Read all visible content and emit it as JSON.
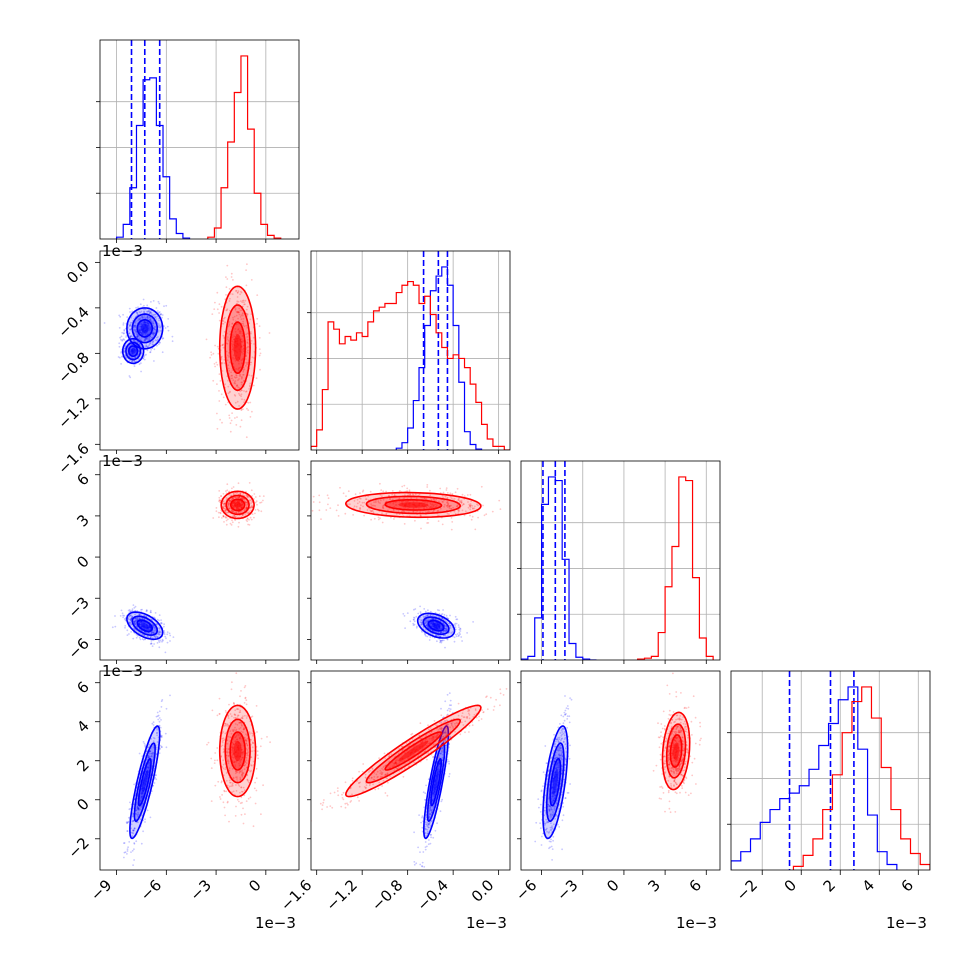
{
  "chart_data": {
    "type": "corner",
    "colors": {
      "blue": "#0000ff",
      "red": "#ff0000"
    },
    "grid": true,
    "parameters": [
      {
        "range": [
          -10.0,
          2.0
        ],
        "ticks": [
          -9,
          -6,
          -3,
          0
        ],
        "tick_labels": [
          "−9",
          "−6",
          "−3",
          "0"
        ],
        "offset_label": "1e−3"
      },
      {
        "range": [
          -1.65,
          0.1
        ],
        "ticks": [
          -1.6,
          -1.2,
          -0.8,
          -0.4,
          0.0
        ],
        "tick_labels": [
          "−1.6",
          "−1.2",
          "−0.8",
          "−0.4",
          "0.0"
        ],
        "offset_label": "1e−3"
      },
      {
        "range": [
          -7.5,
          7.0
        ],
        "ticks": [
          -6,
          -3,
          0,
          3,
          6
        ],
        "tick_labels": [
          "−6",
          "−3",
          "0",
          "3",
          "6"
        ],
        "offset_label": "1e−3"
      },
      {
        "range": [
          -3.6,
          6.6
        ],
        "ticks": [
          -2,
          0,
          2,
          4,
          6
        ],
        "tick_labels": [
          "−2",
          "0",
          "2",
          "4",
          "6"
        ],
        "offset_label": "1e−3"
      }
    ],
    "series": [
      {
        "color": "blue",
        "quantiles": [
          [
            -8.1,
            -7.3,
            -6.4
          ],
          [
            -0.66,
            -0.53,
            -0.45
          ],
          [
            -5.9,
            -5.0,
            -4.3
          ],
          [
            -0.6,
            1.5,
            2.7
          ]
        ],
        "histograms": [
          {
            "edges": [
              -9.0,
              -8.6,
              -8.2,
              -7.8,
              -7.4,
              -7.0,
              -6.6,
              -6.2,
              -5.8,
              -5.4,
              -5.0,
              -4.6
            ],
            "values": [
              0.01,
              0.08,
              0.28,
              0.62,
              0.87,
              0.88,
              0.62,
              0.34,
              0.11,
              0.03,
              0.005
            ]
          },
          {
            "edges": [
              -0.9,
              -0.85,
              -0.8,
              -0.75,
              -0.7,
              -0.65,
              -0.6,
              -0.55,
              -0.5,
              -0.45,
              -0.4,
              -0.35,
              -0.3,
              -0.25,
              -0.2,
              -0.15
            ],
            "values": [
              0.01,
              0.04,
              0.12,
              0.27,
              0.45,
              0.68,
              0.87,
              0.95,
              1.0,
              0.9,
              0.68,
              0.37,
              0.1,
              0.03,
              0.005
            ]
          },
          {
            "edges": [
              -7.5,
              -7.0,
              -6.5,
              -6.0,
              -5.5,
              -5.0,
              -4.5,
              -4.0,
              -3.5,
              -3.0,
              -2.5,
              -2.0
            ],
            "values": [
              0.005,
              0.02,
              0.23,
              0.85,
              1.0,
              0.98,
              0.55,
              0.09,
              0.015,
              0.005,
              0.0
            ]
          },
          {
            "edges": [
              -3.6,
              -3.1,
              -2.6,
              -2.1,
              -1.6,
              -1.1,
              -0.6,
              -0.1,
              0.4,
              0.9,
              1.4,
              1.9,
              2.4,
              2.9,
              3.4,
              3.9,
              4.4,
              4.9
            ],
            "values": [
              0.05,
              0.1,
              0.17,
              0.26,
              0.33,
              0.39,
              0.42,
              0.46,
              0.55,
              0.68,
              0.8,
              0.93,
              1.0,
              0.66,
              0.3,
              0.1,
              0.03
            ]
          }
        ],
        "clusters": [
          {
            "pair": [
              0,
              1
            ],
            "mean": [
              -7.3,
              -0.58
            ],
            "sd": [
              0.6,
              0.1
            ],
            "corr": 0.0,
            "secondary": {
              "mean": [
                -8.0,
                -0.78
              ],
              "sd": [
                0.35,
                0.06
              ],
              "corr": 0.0
            }
          },
          {
            "pair": [
              0,
              2
            ],
            "mean": [
              -7.3,
              -5.0
            ],
            "sd": [
              0.6,
              0.55
            ],
            "corr": -0.5
          },
          {
            "pair": [
              1,
              2
            ],
            "mean": [
              -0.55,
              -5.0
            ],
            "sd": [
              0.09,
              0.5
            ],
            "corr": -0.4
          },
          {
            "pair": [
              0,
              3
            ],
            "mean": [
              -7.3,
              0.9
            ],
            "sd": [
              0.5,
              1.6
            ],
            "corr": 0.85
          },
          {
            "pair": [
              1,
              3
            ],
            "mean": [
              -0.55,
              0.9
            ],
            "sd": [
              0.06,
              1.6
            ],
            "corr": 0.85
          },
          {
            "pair": [
              2,
              3
            ],
            "mean": [
              -5.0,
              0.9
            ],
            "sd": [
              0.5,
              1.6
            ],
            "corr": 0.6
          }
        ]
      },
      {
        "color": "red",
        "histograms": [
          {
            "edges": [
              -3.5,
              -3.1,
              -2.7,
              -2.3,
              -1.9,
              -1.5,
              -1.1,
              -0.7,
              -0.3,
              0.1,
              0.5,
              0.9
            ],
            "values": [
              0.01,
              0.06,
              0.28,
              0.53,
              0.8,
              1.0,
              0.6,
              0.25,
              0.08,
              0.02,
              0.005
            ]
          },
          {
            "edges": [
              -1.65,
              -1.6,
              -1.55,
              -1.5,
              -1.45,
              -1.4,
              -1.35,
              -1.3,
              -1.25,
              -1.2,
              -1.15,
              -1.1,
              -1.05,
              -1.0,
              -0.95,
              -0.9,
              -0.85,
              -0.8,
              -0.75,
              -0.7,
              -0.65,
              -0.6,
              -0.55,
              -0.5,
              -0.45,
              -0.4,
              -0.35,
              -0.3,
              -0.25,
              -0.2,
              -0.15,
              -0.1,
              -0.05,
              0.0,
              0.05,
              0.1
            ],
            "values": [
              0.02,
              0.11,
              0.33,
              0.7,
              0.66,
              0.58,
              0.62,
              0.6,
              0.64,
              0.62,
              0.7,
              0.76,
              0.78,
              0.8,
              0.8,
              0.86,
              0.9,
              0.92,
              0.9,
              0.8,
              0.84,
              0.74,
              0.64,
              0.56,
              0.5,
              0.52,
              0.5,
              0.45,
              0.36,
              0.26,
              0.14,
              0.06,
              0.02,
              0.02,
              0.0
            ]
          },
          {
            "edges": [
              1.0,
              1.5,
              2.0,
              2.5,
              3.0,
              3.5,
              4.0,
              4.5,
              5.0,
              5.5,
              6.0,
              6.5
            ],
            "values": [
              0.005,
              0.01,
              0.02,
              0.15,
              0.4,
              0.62,
              1.0,
              0.98,
              0.45,
              0.12,
              0.02
            ]
          },
          {
            "edges": [
              -0.4,
              0.1,
              0.6,
              1.1,
              1.6,
              2.1,
              2.6,
              3.1,
              3.6,
              4.1,
              4.6,
              5.1,
              5.6,
              6.1,
              6.6
            ],
            "values": [
              0.02,
              0.08,
              0.17,
              0.33,
              0.52,
              0.75,
              0.92,
              1.0,
              0.83,
              0.56,
              0.33,
              0.17,
              0.09,
              0.03
            ]
          }
        ],
        "clusters": [
          {
            "pair": [
              0,
              1
            ],
            "mean": [
              -1.7,
              -0.75
            ],
            "sd": [
              0.6,
              0.3
            ],
            "corr": 0.0
          },
          {
            "pair": [
              0,
              2
            ],
            "mean": [
              -1.7,
              3.8
            ],
            "sd": [
              0.55,
              0.55
            ],
            "corr": 0.0
          },
          {
            "pair": [
              1,
              2
            ],
            "mean": [
              -0.75,
              3.8
            ],
            "sd": [
              0.33,
              0.5
            ],
            "corr": -0.1
          },
          {
            "pair": [
              0,
              3
            ],
            "mean": [
              -1.7,
              2.5
            ],
            "sd": [
              0.6,
              1.3
            ],
            "corr": 0.0
          },
          {
            "pair": [
              1,
              3
            ],
            "mean": [
              -0.75,
              2.5
            ],
            "sd": [
              0.33,
              1.3
            ],
            "corr": 0.95
          },
          {
            "pair": [
              2,
              3
            ],
            "mean": [
              3.8,
              2.5
            ],
            "sd": [
              0.55,
              1.1
            ],
            "corr": 0.2
          }
        ]
      }
    ]
  }
}
